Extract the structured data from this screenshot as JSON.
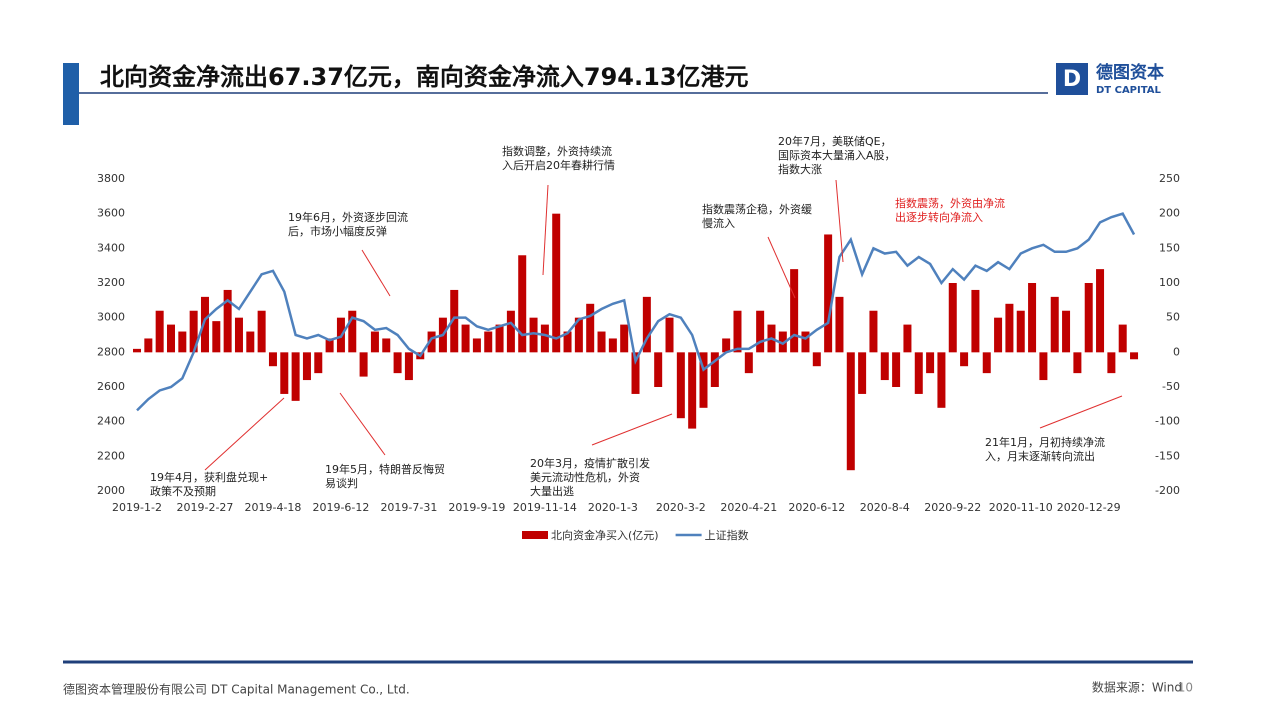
{
  "header": {
    "title": "北向资金净流出67.37亿元，南向资金净流入794.13亿港元",
    "logo_cn": "德图资本",
    "logo_en": "DT CAPITAL"
  },
  "footer": {
    "company": "德图资本管理股份有限公司 DT Capital Management Co., Ltd.",
    "source": "数据来源：Wind",
    "page": "10"
  },
  "chart_data": {
    "type": "bar_line",
    "categories": [
      "2019-1-2",
      null,
      null,
      null,
      null,
      null,
      "2019-2-27",
      null,
      null,
      null,
      null,
      null,
      "2019-4-18",
      null,
      null,
      null,
      null,
      null,
      "2019-6-12",
      null,
      null,
      null,
      null,
      null,
      "2019-7-31",
      null,
      null,
      null,
      null,
      null,
      "2019-9-19",
      null,
      null,
      null,
      null,
      null,
      "2019-11-14",
      null,
      null,
      null,
      null,
      null,
      "2020-1-3",
      null,
      null,
      null,
      null,
      null,
      "2020-3-2",
      null,
      null,
      null,
      null,
      null,
      "2020-4-21",
      null,
      null,
      null,
      null,
      null,
      "2020-6-12",
      null,
      null,
      null,
      null,
      null,
      "2020-8-4",
      null,
      null,
      null,
      null,
      null,
      "2020-9-22",
      null,
      null,
      null,
      null,
      null,
      "2020-11-10",
      null,
      null,
      null,
      null,
      null,
      "2020-12-29",
      null,
      null,
      null,
      null
    ],
    "series": [
      {
        "name": "北向资金净买入(亿元)",
        "color": "#c00000",
        "axis": "y2",
        "kind": "bar",
        "values": [
          5,
          20,
          60,
          40,
          30,
          60,
          80,
          45,
          90,
          50,
          30,
          60,
          -20,
          -60,
          -70,
          -40,
          -30,
          20,
          50,
          60,
          -35,
          30,
          20,
          -30,
          -40,
          -10,
          30,
          50,
          90,
          40,
          20,
          30,
          40,
          60,
          140,
          50,
          40,
          200,
          30,
          50,
          70,
          30,
          20,
          40,
          -60,
          80,
          -50,
          50,
          -95,
          -110,
          -80,
          -50,
          20,
          60,
          -30,
          60,
          40,
          30,
          120,
          30,
          -20,
          170,
          80,
          -170,
          -60,
          60,
          -40,
          -50,
          40,
          -60,
          -30,
          -80,
          100,
          -20,
          90,
          -30,
          50,
          70,
          60,
          100,
          -40,
          80,
          60,
          -30,
          100,
          120,
          -30,
          40,
          -10
        ]
      },
      {
        "name": "上证指数",
        "color": "#4f81bd",
        "axis": "y",
        "kind": "line",
        "values": [
          2465,
          2530,
          2580,
          2600,
          2650,
          2800,
          2990,
          3050,
          3100,
          3050,
          3150,
          3250,
          3270,
          3150,
          2900,
          2880,
          2900,
          2870,
          2890,
          3000,
          2980,
          2930,
          2940,
          2900,
          2820,
          2780,
          2880,
          2900,
          3000,
          3000,
          2950,
          2930,
          2950,
          2970,
          2900,
          2910,
          2900,
          2880,
          2910,
          2990,
          3010,
          3050,
          3080,
          3100,
          2750,
          2880,
          2980,
          3020,
          3000,
          2900,
          2700,
          2750,
          2800,
          2820,
          2820,
          2860,
          2880,
          2850,
          2900,
          2880,
          2930,
          2970,
          3350,
          3450,
          3250,
          3400,
          3370,
          3380,
          3300,
          3350,
          3310,
          3200,
          3280,
          3220,
          3300,
          3270,
          3320,
          3280,
          3370,
          3400,
          3420,
          3380,
          3380,
          3400,
          3450,
          3550,
          3580,
          3600,
          3480
        ]
      }
    ],
    "ylim": [
      2000,
      3800
    ],
    "yticks": [
      2000,
      2200,
      2400,
      2600,
      2800,
      3000,
      3200,
      3400,
      3600,
      3800
    ],
    "y2lim": [
      -200,
      250
    ],
    "y2ticks": [
      -200,
      -150,
      -100,
      -50,
      0,
      50,
      100,
      150,
      200,
      250
    ],
    "annotations": [
      {
        "lines": [
          "19年4月，获利盘兑现+",
          "政策不及预期"
        ],
        "color": "#222"
      },
      {
        "lines": [
          "19年6月，外资逐步回流",
          "后，市场小幅度反弹"
        ],
        "color": "#222"
      },
      {
        "lines": [
          "19年5月，特朗普反悔贸",
          "易谈判"
        ],
        "color": "#222"
      },
      {
        "lines": [
          "指数调整，外资持续流",
          "入后开启20年春耕行情"
        ],
        "color": "#222"
      },
      {
        "lines": [
          "20年3月，疫情扩散引发",
          "美元流动性危机，外资",
          "大量出逃"
        ],
        "color": "#222"
      },
      {
        "lines": [
          "指数震荡企稳，外资缓",
          "慢流入"
        ],
        "color": "#222"
      },
      {
        "lines": [
          "20年7月，美联储QE，",
          "国际资本大量涌入A股，",
          "指数大涨"
        ],
        "color": "#222"
      },
      {
        "lines": [
          "指数震荡，外资由净流",
          "出逐步转向净流入"
        ],
        "color": "#e02020"
      },
      {
        "lines": [
          "21年1月，月初持续净流",
          "入，月末逐渐转向流出"
        ],
        "color": "#222"
      }
    ]
  }
}
